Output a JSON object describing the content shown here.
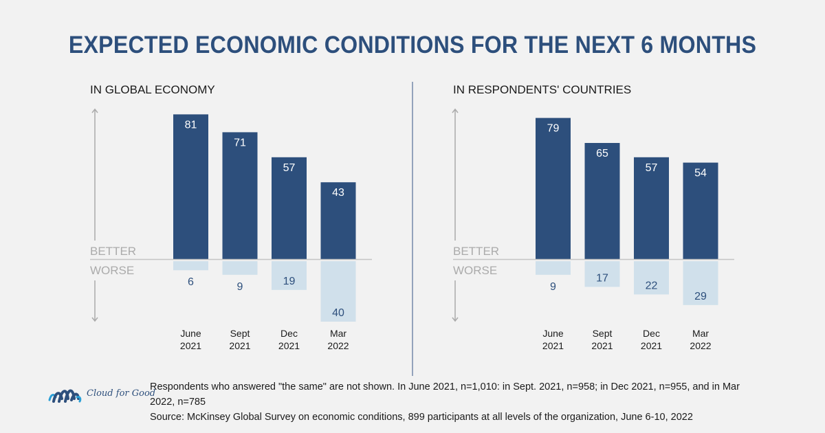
{
  "title": "EXPECTED ECONOMIC CONDITIONS FOR THE NEXT 6 MONTHS",
  "colors": {
    "better": "#2d4f7c",
    "worse": "#d0e0eb",
    "better_label": "#ffffff",
    "worse_label": "#2d4f7c",
    "axis": "#aaaaaa",
    "baseline": "#c4c4c4",
    "title": "#2d4f7c"
  },
  "axis_labels": {
    "better": "BETTER",
    "worse": "WORSE"
  },
  "chart_data": [
    {
      "type": "bar",
      "title": "IN GLOBAL ECONOMY",
      "categories": [
        "June 2021",
        "Sept 2021",
        "Dec 2021",
        "Mar 2022"
      ],
      "category_lines": [
        [
          "June",
          "2021"
        ],
        [
          "Sept",
          "2021"
        ],
        [
          "Dec",
          "2021"
        ],
        [
          "Mar",
          "2022"
        ]
      ],
      "series": [
        {
          "name": "Better",
          "values": [
            81,
            71,
            57,
            43
          ]
        },
        {
          "name": "Worse",
          "values": [
            6,
            9,
            19,
            40
          ]
        }
      ],
      "xlabel": "",
      "ylabel": "",
      "grid": false,
      "legend": "none"
    },
    {
      "type": "bar",
      "title": "IN RESPONDENTS' COUNTRIES",
      "categories": [
        "June 2021",
        "Sept 2021",
        "Dec 2021",
        "Mar 2022"
      ],
      "category_lines": [
        [
          "June",
          "2021"
        ],
        [
          "Sept",
          "2021"
        ],
        [
          "Dec",
          "2021"
        ],
        [
          "Mar",
          "2022"
        ]
      ],
      "series": [
        {
          "name": "Better",
          "values": [
            79,
            65,
            57,
            54
          ]
        },
        {
          "name": "Worse",
          "values": [
            9,
            17,
            22,
            29
          ]
        }
      ],
      "xlabel": "",
      "ylabel": "",
      "grid": false,
      "legend": "none"
    }
  ],
  "footnote": {
    "line1": "Respondents who answered \"the same\" are not shown. In June 2021, n=1,010: in Sept. 2021, n=958; in Dec 2021, n=955, and in Mar 2022, n=785",
    "line2": "Source: McKinsey Global Survey on economic conditions, 899 participants at all levels of the organization, June 6-10, 2022"
  },
  "logo": {
    "text": "Cloud for Good",
    "icon": "cloud-stripes-logo-icon"
  }
}
